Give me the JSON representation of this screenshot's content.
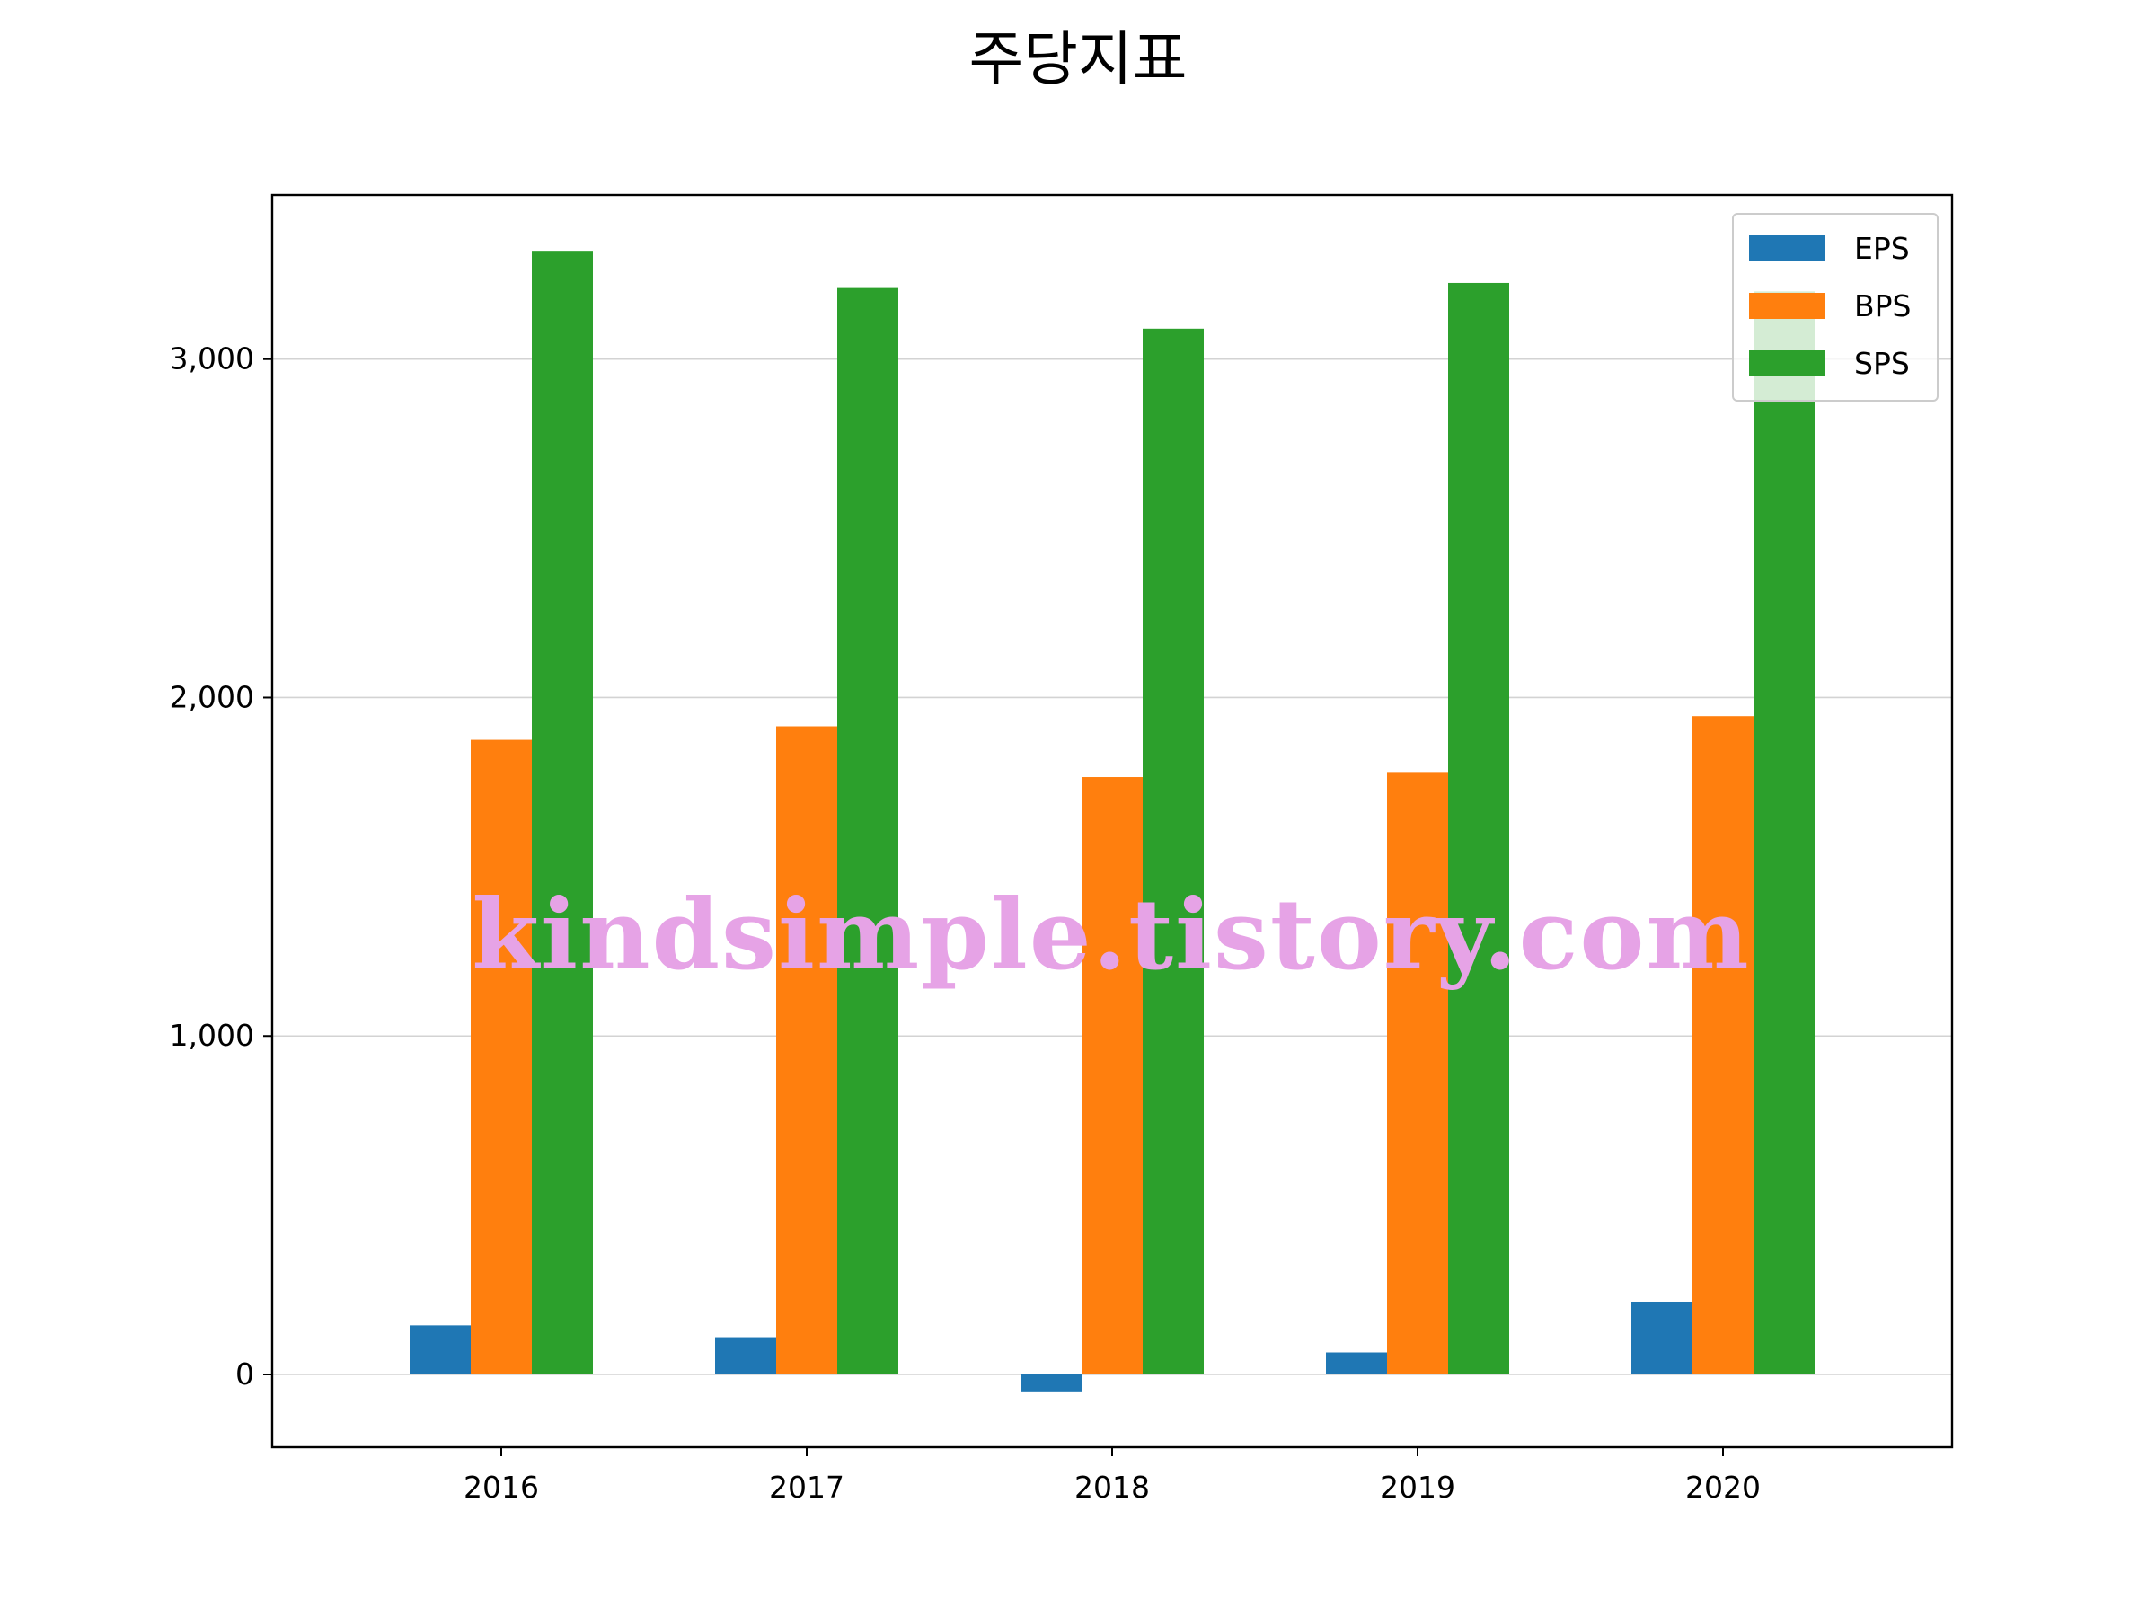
{
  "chart_data": {
    "type": "bar",
    "title": "주당지표",
    "categories": [
      "2016",
      "2017",
      "2018",
      "2019",
      "2020"
    ],
    "series": [
      {
        "name": "EPS",
        "color": "#1f77b4",
        "values": [
          145,
          110,
          -50,
          65,
          215
        ]
      },
      {
        "name": "BPS",
        "color": "#ff7f0e",
        "values": [
          1875,
          1915,
          1765,
          1780,
          1945
        ]
      },
      {
        "name": "SPS",
        "color": "#2ca02c",
        "values": [
          3320,
          3210,
          3090,
          3225,
          3200
        ]
      }
    ],
    "xlabel": "",
    "ylabel": "",
    "ylim": [
      -215,
      3485
    ],
    "yticks": [
      0,
      1000,
      2000,
      3000
    ],
    "ytick_labels": [
      "0",
      "1,000",
      "2,000",
      "3,000"
    ],
    "grid": "horizontal",
    "legend_position": "top-right"
  },
  "watermark": "kindsimple.tistory.com"
}
